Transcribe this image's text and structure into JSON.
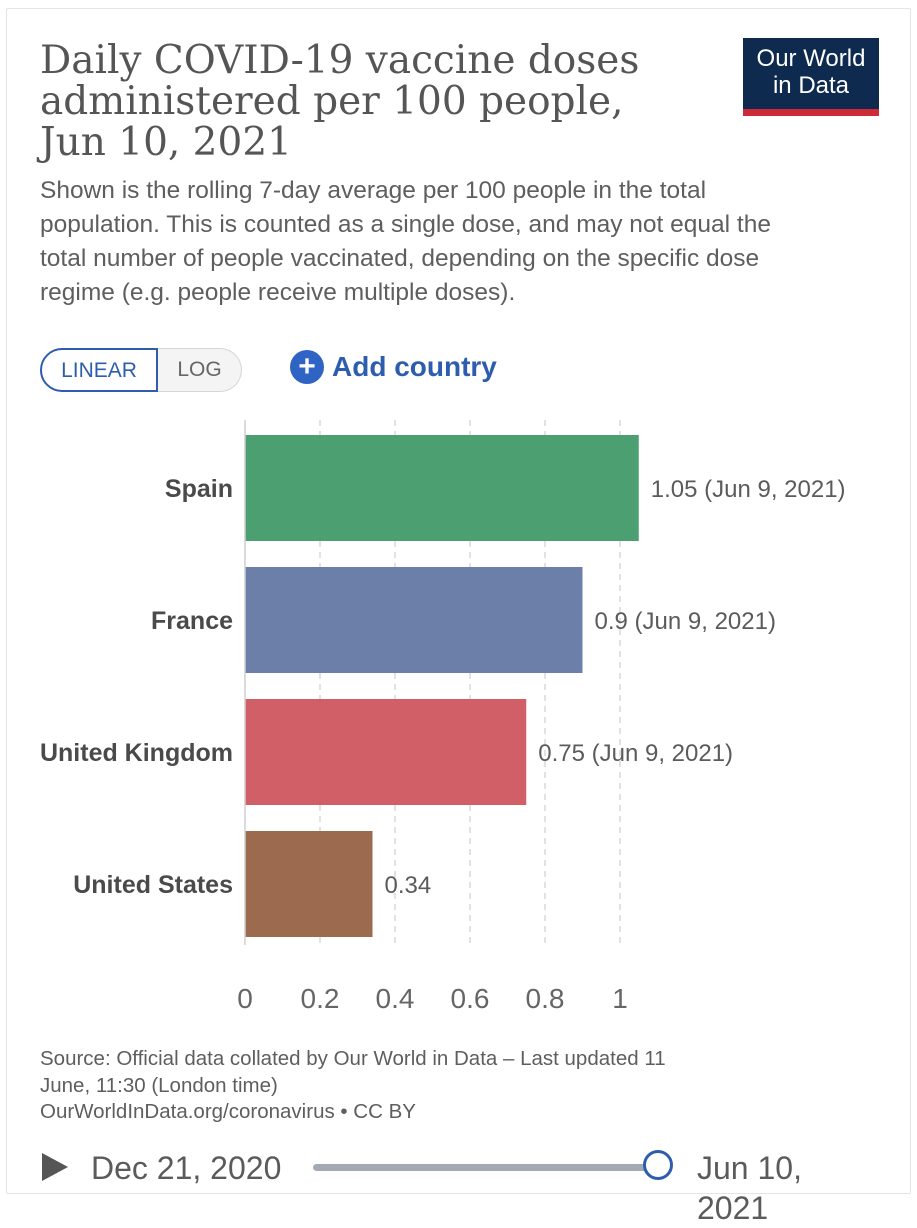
{
  "header": {
    "title": "Daily COVID-19 vaccine doses administered per 100 people, Jun 10, 2021",
    "subtitle": "Shown is the rolling 7-day average per 100 people in the total population. This is counted as a single dose, and may not equal the total number of people vaccinated, depending on the specific dose regime (e.g. people receive multiple doses).",
    "logo_line1": "Our World",
    "logo_line2": "in Data"
  },
  "controls": {
    "linear_label": "LINEAR",
    "log_label": "LOG",
    "add_country_label": "Add country",
    "plus_symbol": "+"
  },
  "chart_data": {
    "type": "bar",
    "orientation": "horizontal",
    "categories": [
      "Spain",
      "France",
      "United Kingdom",
      "United States"
    ],
    "values": [
      1.05,
      0.9,
      0.75,
      0.34
    ],
    "value_labels": [
      "1.05 (Jun 9, 2021)",
      "0.9 (Jun 9, 2021)",
      "0.75 (Jun 9, 2021)",
      "0.34"
    ],
    "colors": [
      "#4c9f70",
      "#6b7fa8",
      "#d15f67",
      "#9c6b4f"
    ],
    "xticks": [
      0,
      0.2,
      0.4,
      0.6,
      0.8,
      1
    ],
    "xtick_labels": [
      "0",
      "0.2",
      "0.4",
      "0.6",
      "0.8",
      "1"
    ],
    "xlim": [
      0,
      1.05
    ],
    "grid": true
  },
  "footer": {
    "source_line1": "Source: Official data collated by Our World in Data – Last updated 11",
    "source_line2": "June, 11:30 (London time)",
    "source_line3": "OurWorldInData.org/coronavirus • CC BY"
  },
  "timeline": {
    "start_label": "Dec 21, 2020",
    "end_label": "Jun 10, 2021",
    "position": 1.0
  }
}
